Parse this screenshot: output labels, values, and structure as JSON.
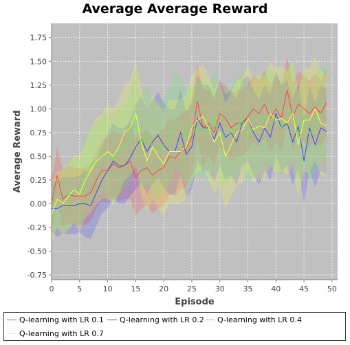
{
  "chart_data": {
    "type": "line",
    "title": "Average Average Reward",
    "xlabel": "Episode",
    "ylabel": "Average Reward",
    "xlim": [
      0,
      51
    ],
    "ylim": [
      -0.8,
      1.9
    ],
    "xticks": [
      "0",
      "5",
      "10",
      "15",
      "20",
      "25",
      "30",
      "35",
      "40",
      "45",
      "50"
    ],
    "yticks": [
      "-0.75",
      "-0.50",
      "-0.25",
      "0.00",
      "0.25",
      "0.50",
      "0.75",
      "1.00",
      "1.25",
      "1.50",
      "1.75"
    ],
    "grid": true,
    "legend_position": "bottom",
    "x": [
      0,
      1,
      2,
      3,
      4,
      5,
      6,
      7,
      8,
      9,
      10,
      11,
      12,
      13,
      14,
      15,
      16,
      17,
      18,
      19,
      20,
      21,
      22,
      23,
      24,
      25,
      26,
      27,
      28,
      29,
      30,
      31,
      32,
      33,
      34,
      35,
      36,
      37,
      38,
      39,
      40,
      41,
      42,
      43,
      44,
      45,
      46,
      47,
      48,
      49
    ],
    "series": [
      {
        "name": "Q-learning with LR 0.1",
        "color": "#ff4040",
        "values": [
          0.0,
          0.3,
          0.05,
          0.1,
          0.08,
          0.08,
          0.08,
          0.12,
          0.25,
          0.35,
          0.35,
          0.42,
          0.38,
          0.4,
          0.45,
          0.28,
          0.35,
          0.38,
          0.3,
          0.35,
          0.38,
          0.5,
          0.48,
          0.55,
          0.58,
          0.7,
          1.08,
          0.8,
          0.85,
          0.75,
          0.95,
          0.9,
          0.8,
          0.85,
          0.85,
          0.92,
          1.0,
          0.95,
          1.05,
          0.9,
          1.0,
          0.9,
          1.2,
          0.92,
          1.05,
          1.0,
          0.95,
          1.02,
          0.95,
          1.07
        ],
        "band": [
          0.25,
          0.3,
          0.3,
          0.3,
          0.3,
          0.3,
          0.3,
          0.3,
          0.3,
          0.32,
          0.35,
          0.35,
          0.35,
          0.35,
          0.4,
          0.4,
          0.4,
          0.4,
          0.4,
          0.4,
          0.4,
          0.4,
          0.4,
          0.4,
          0.4,
          0.4,
          0.4,
          0.4,
          0.35,
          0.35,
          0.35,
          0.35,
          0.35,
          0.35,
          0.35,
          0.35,
          0.35,
          0.35,
          0.35,
          0.35,
          0.35,
          0.35,
          0.35,
          0.35,
          0.35,
          0.35,
          0.35,
          0.35,
          0.35,
          0.35
        ]
      },
      {
        "name": "Q-learning with LR 0.2",
        "color": "#4040ff",
        "values": [
          -0.05,
          -0.05,
          -0.02,
          -0.02,
          -0.02,
          0.0,
          0.0,
          -0.02,
          0.12,
          0.25,
          0.35,
          0.45,
          0.4,
          0.4,
          0.48,
          0.6,
          0.68,
          0.55,
          0.65,
          0.72,
          0.62,
          0.55,
          0.55,
          0.75,
          0.52,
          0.6,
          0.9,
          0.8,
          0.8,
          0.68,
          0.85,
          0.7,
          0.75,
          0.65,
          0.85,
          0.9,
          0.75,
          0.65,
          0.8,
          0.7,
          0.95,
          0.8,
          0.85,
          0.65,
          0.82,
          0.45,
          0.8,
          0.62,
          0.8,
          0.76
        ],
        "band": [
          0.25,
          0.3,
          0.3,
          0.3,
          0.3,
          0.3,
          0.35,
          0.35,
          0.35,
          0.35,
          0.4,
          0.4,
          0.4,
          0.4,
          0.4,
          0.45,
          0.45,
          0.45,
          0.45,
          0.45,
          0.45,
          0.45,
          0.45,
          0.45,
          0.45,
          0.45,
          0.45,
          0.45,
          0.45,
          0.45,
          0.45,
          0.45,
          0.45,
          0.45,
          0.45,
          0.45,
          0.45,
          0.45,
          0.45,
          0.45,
          0.45,
          0.45,
          0.45,
          0.45,
          0.45,
          0.45,
          0.45,
          0.45,
          0.45,
          0.45
        ]
      },
      {
        "name": "Q-learning with LR 0.4",
        "color": "#60ee60",
        "values": [
          -0.1,
          0.05,
          0.0,
          0.1,
          0.15,
          0.12,
          0.3,
          0.4,
          0.45,
          0.55,
          0.5,
          0.48,
          0.55,
          0.6,
          0.7,
          0.95,
          0.62,
          0.75,
          0.6,
          0.55,
          0.62,
          0.7,
          0.88,
          0.82,
          0.7,
          0.75,
          0.8,
          0.8,
          0.75,
          0.9,
          0.7,
          0.72,
          0.75,
          0.82,
          0.88,
          0.72,
          0.8,
          0.82,
          0.9,
          0.92,
          0.85,
          0.8,
          0.92,
          0.98,
          0.7,
          0.92,
          0.72,
          0.85,
          0.95,
          0.95
        ],
        "band": [
          0.25,
          0.3,
          0.3,
          0.35,
          0.35,
          0.35,
          0.4,
          0.4,
          0.4,
          0.4,
          0.45,
          0.45,
          0.45,
          0.45,
          0.45,
          0.5,
          0.5,
          0.5,
          0.5,
          0.5,
          0.5,
          0.5,
          0.5,
          0.5,
          0.5,
          0.5,
          0.5,
          0.5,
          0.5,
          0.5,
          0.5,
          0.5,
          0.5,
          0.5,
          0.5,
          0.5,
          0.5,
          0.5,
          0.5,
          0.5,
          0.5,
          0.5,
          0.5,
          0.5,
          0.5,
          0.5,
          0.5,
          0.5,
          0.5,
          0.5
        ]
      },
      {
        "name": "Q-learning with LR 0.7",
        "color": "#ffff40",
        "values": [
          -0.12,
          0.05,
          0.0,
          0.08,
          0.15,
          0.1,
          0.25,
          0.35,
          0.45,
          0.5,
          0.55,
          0.5,
          0.6,
          0.75,
          0.8,
          0.95,
          0.65,
          0.45,
          0.6,
          0.5,
          0.42,
          0.55,
          0.55,
          0.55,
          0.6,
          0.8,
          0.88,
          0.92,
          0.8,
          0.65,
          0.75,
          0.5,
          0.62,
          0.75,
          0.78,
          0.9,
          0.78,
          0.82,
          0.8,
          0.95,
          0.88,
          0.9,
          0.85,
          0.95,
          0.62,
          0.88,
          0.88,
          1.0,
          0.85,
          0.82
        ],
        "band": [
          0.3,
          0.3,
          0.35,
          0.35,
          0.35,
          0.4,
          0.4,
          0.45,
          0.45,
          0.45,
          0.5,
          0.5,
          0.5,
          0.5,
          0.5,
          0.55,
          0.55,
          0.55,
          0.55,
          0.55,
          0.55,
          0.55,
          0.55,
          0.55,
          0.55,
          0.55,
          0.55,
          0.55,
          0.55,
          0.55,
          0.55,
          0.55,
          0.55,
          0.55,
          0.55,
          0.55,
          0.55,
          0.55,
          0.55,
          0.55,
          0.55,
          0.55,
          0.55,
          0.55,
          0.55,
          0.55,
          0.55,
          0.55,
          0.55,
          0.55
        ]
      }
    ]
  }
}
